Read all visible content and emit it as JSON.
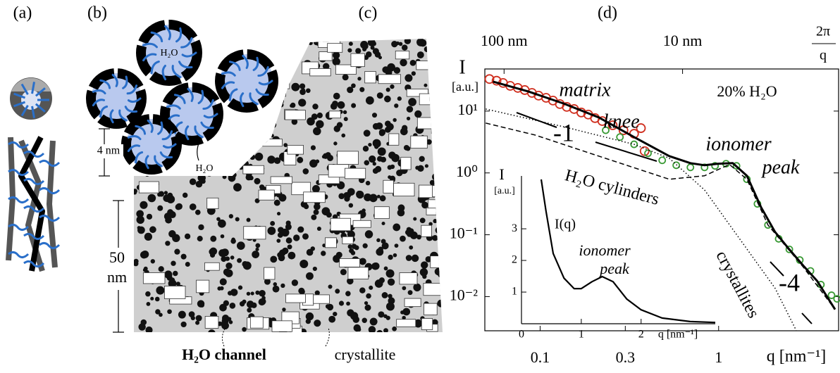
{
  "panel_labels": [
    "(a)",
    "(b)",
    "(c)",
    "(d)"
  ],
  "panel_b": {
    "center_label": "H₂O",
    "scale": "4 nm",
    "water_label": "H₂O"
  },
  "panel_c": {
    "scale_value": "50",
    "scale_unit": "nm",
    "channel_label": "H₂O channel",
    "crystallite_label": "crystallite"
  },
  "chart_data": [
    {
      "type": "line",
      "log_x": true,
      "log_y": true,
      "xlabel": "q [nm⁻¹]",
      "ylabel": "I",
      "yunit": "[a.u.]",
      "x2label": {
        "numerator": "2π",
        "denominator": "q"
      },
      "x2ticks": [
        {
          "value": 0.0628,
          "label": "100 nm"
        },
        {
          "value": 0.628,
          "label": "10 nm"
        }
      ],
      "xlim": [
        0.049,
        4.7
      ],
      "ylim": [
        0.0028,
        48
      ],
      "xticks": [
        0.1,
        0.3,
        1
      ],
      "yticks": [
        {
          "value": 10,
          "label": "10¹"
        },
        {
          "value": 1,
          "label": "10⁰"
        },
        {
          "value": 0.1,
          "label": "10⁻¹"
        },
        {
          "value": 0.01,
          "label": "10⁻²"
        }
      ],
      "annotations": [
        "matrix",
        "knee",
        "ionomer",
        "peak",
        "20% H₂O",
        "H₂O cylinders",
        "crystallites",
        "-1",
        "-4"
      ],
      "series": [
        {
          "color": "#d03020",
          "style": "open-circle",
          "x": [
            0.052,
            0.057,
            0.062,
            0.068,
            0.075,
            0.082,
            0.09,
            0.098,
            0.108,
            0.118,
            0.129,
            0.141,
            0.155,
            0.17,
            0.186,
            0.203,
            0.223,
            0.255,
            0.293,
            0.336,
            0.367,
            0.385
          ],
          "values": [
            33,
            31,
            28.5,
            25.6,
            23.7,
            21.9,
            19.7,
            17.8,
            16.4,
            14.8,
            13,
            11.7,
            10.8,
            9.5,
            8.8,
            7.7,
            6.9,
            5.9,
            4.9,
            4.3,
            5.3,
            2.25
          ]
        },
        {
          "color": "#3a9a35",
          "style": "open-circle",
          "x": [
            0.233,
            0.28,
            0.336,
            0.402,
            0.483,
            0.579,
            0.695,
            0.834,
            0.955,
            1.1,
            1.26,
            1.44,
            1.65,
            1.89,
            2.17,
            2.49,
            2.85,
            3.27,
            3.74,
            4.29,
            4.61
          ],
          "values": [
            4.9,
            3.8,
            2.9,
            2.08,
            1.6,
            1.33,
            1.23,
            1.23,
            1.3,
            1.41,
            1.3,
            0.79,
            0.316,
            0.144,
            0.086,
            0.058,
            0.039,
            0.026,
            0.0156,
            0.0105,
            0.0092
          ]
        },
        {
          "color": "#000000",
          "style": "solid",
          "x": [
            0.0544,
            0.0857,
            0.135,
            0.213,
            0.336,
            0.529,
            0.695,
            0.834,
            1,
            1.2,
            1.44,
            1.73,
            2.07,
            2.49,
            2.98,
            3.57,
            4.49
          ],
          "values": [
            30,
            20.8,
            13.3,
            7.9,
            3.8,
            1.87,
            1.44,
            1.33,
            1.41,
            1.44,
            0.9,
            0.277,
            0.111,
            0.058,
            0.0316,
            0.0178,
            0.0062
          ]
        },
        {
          "color": "#000000",
          "style": "dashed",
          "x": [
            0.0496,
            0.0938,
            0.213,
            0.529,
            0.834,
            1.15,
            1.44,
            1.89,
            2.98,
            4.49
          ],
          "values": [
            6.4,
            4.1,
            1.87,
            0.79,
            0.9,
            1.37,
            0.79,
            0.144,
            0.03,
            0.0062
          ]
        },
        {
          "color": "#000000",
          "style": "dotted",
          "x": [
            0.0496,
            0.135,
            0.336,
            0.529,
            0.834,
            1.31,
            2.07,
            2.72
          ],
          "values": [
            10.8,
            5.6,
            2.9,
            1.73,
            0.53,
            0.086,
            0.0137,
            0.00285
          ]
        }
      ]
    },
    {
      "type": "line",
      "ylabel": "I",
      "yunit": "[a.u.]",
      "xlabel": "q [nm⁻¹]",
      "curve_label": "I(q)",
      "annotations": [
        "ionomer",
        "peak"
      ],
      "xlim": [
        0,
        3.24
      ],
      "ylim": [
        0,
        4.67
      ],
      "xticks": [
        0,
        1,
        2
      ],
      "yticks": [
        1,
        2,
        3
      ],
      "series": [
        {
          "color": "#000000",
          "style": "solid",
          "x": [
            0.33,
            0.41,
            0.53,
            0.71,
            0.88,
            1,
            1.18,
            1.35,
            1.53,
            1.76,
            2,
            2.35,
            2.82,
            3.24
          ],
          "values": [
            4.56,
            3.56,
            2.22,
            1.44,
            1.11,
            1.11,
            1.33,
            1.49,
            1.33,
            0.78,
            0.44,
            0.18,
            0.07,
            0.04
          ]
        }
      ]
    }
  ]
}
